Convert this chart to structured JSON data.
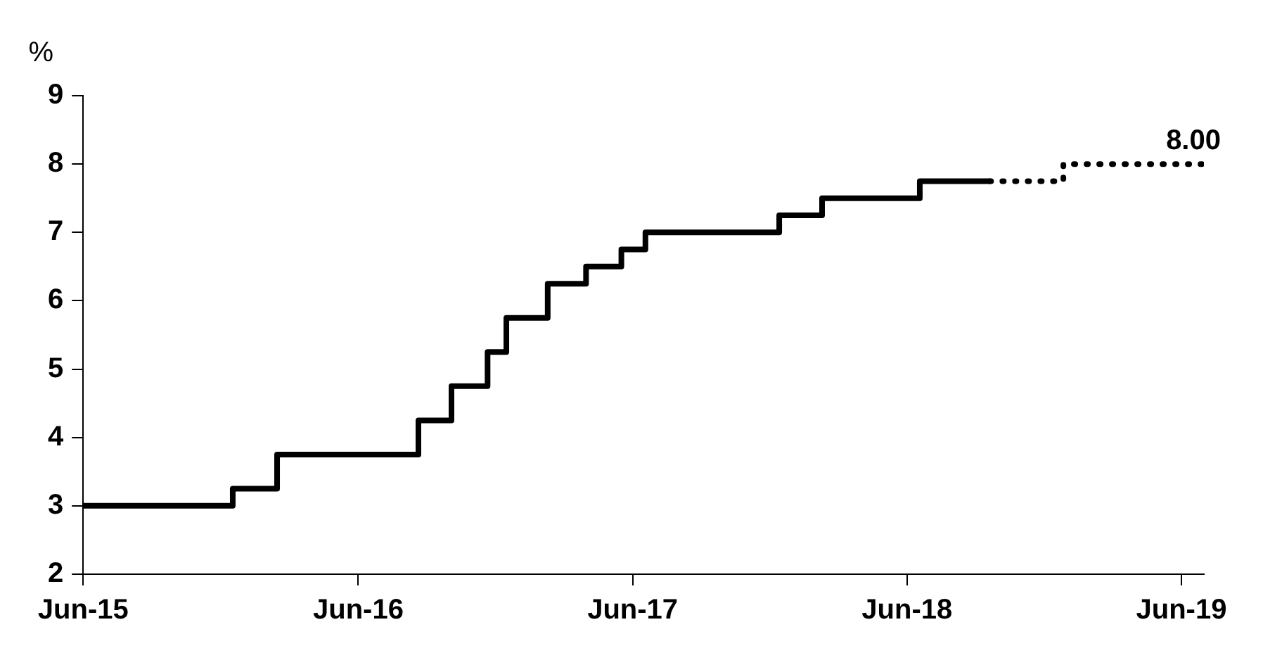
{
  "chart_data": {
    "type": "step",
    "ylabel": "%",
    "grid": false,
    "legend": false,
    "xlim": [
      "2015-06-01",
      "2019-07-01"
    ],
    "xticks": [
      {
        "value": "2015-06-01",
        "label": "Jun-15"
      },
      {
        "value": "2016-06-01",
        "label": "Jun-16"
      },
      {
        "value": "2017-06-01",
        "label": "Jun-17"
      },
      {
        "value": "2018-06-01",
        "label": "Jun-18"
      },
      {
        "value": "2019-06-01",
        "label": "Jun-19"
      }
    ],
    "ylim": [
      2,
      9
    ],
    "yticks": [
      2,
      3,
      4,
      5,
      6,
      7,
      8,
      9
    ],
    "annotations": [
      {
        "text": "8.00",
        "x": "2019-07-01",
        "y": 8
      }
    ],
    "series": [
      {
        "color": "#000000",
        "line_style": "solid",
        "x": [
          "2015-06-01",
          "2015-12-17",
          "2016-02-14",
          "2016-08-20",
          "2016-10-03",
          "2016-11-20",
          "2016-12-15",
          "2017-02-08",
          "2017-03-31",
          "2017-05-17",
          "2017-06-18",
          "2017-12-13",
          "2018-02-08",
          "2018-06-18",
          "2018-09-19"
        ],
        "values": [
          3,
          3.25,
          3.75,
          4.25,
          4.75,
          5.25,
          5.75,
          6.25,
          6.5,
          6.75,
          7,
          7.25,
          7.5,
          7.75,
          7.75
        ]
      },
      {
        "color": "#000000",
        "line_style": "dotted",
        "x": [
          "2018-09-19",
          "2018-12-26",
          "2019-07-01"
        ],
        "values": [
          7.75,
          8,
          8
        ]
      }
    ]
  }
}
